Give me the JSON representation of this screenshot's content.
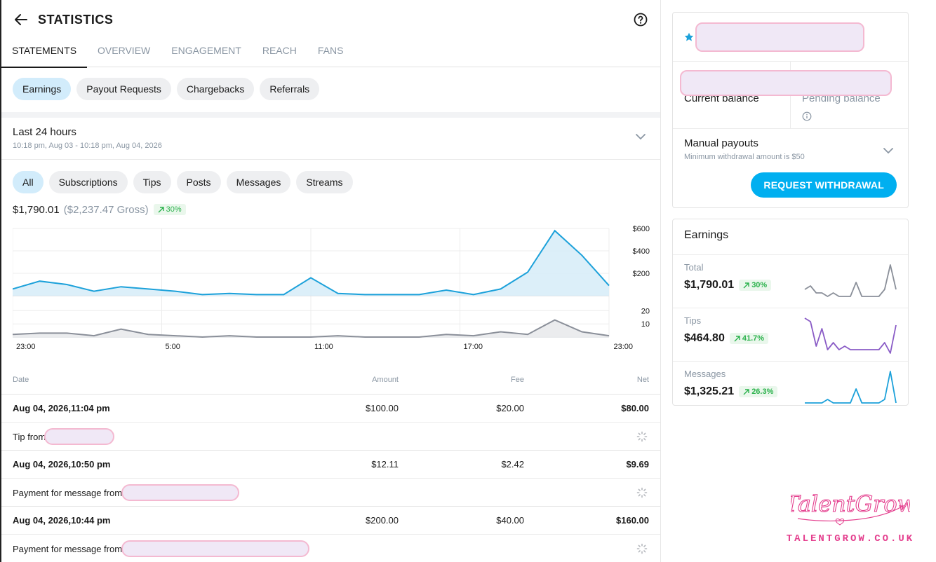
{
  "header": {
    "title": "STATISTICS"
  },
  "tabs": [
    {
      "label": "STATEMENTS",
      "active": true
    },
    {
      "label": "OVERVIEW"
    },
    {
      "label": "ENGAGEMENT"
    },
    {
      "label": "REACH"
    },
    {
      "label": "FANS"
    }
  ],
  "statement_types": [
    {
      "label": "Earnings",
      "active": true
    },
    {
      "label": "Payout Requests"
    },
    {
      "label": "Chargebacks"
    },
    {
      "label": "Referrals"
    }
  ],
  "period": {
    "title": "Last 24 hours",
    "range": "10:18 pm, Aug 03 - 10:18 pm, Aug 04, 2026"
  },
  "filters": [
    {
      "label": "All",
      "active": true
    },
    {
      "label": "Subscriptions"
    },
    {
      "label": "Tips"
    },
    {
      "label": "Posts"
    },
    {
      "label": "Messages"
    },
    {
      "label": "Streams"
    }
  ],
  "summary": {
    "net": "$1,790.01",
    "gross": "($2,237.47 Gross)",
    "change": "30%"
  },
  "chart_data": [
    {
      "type": "area",
      "series": [
        {
          "values": [
            60,
            130,
            100,
            40,
            80,
            60,
            40,
            10,
            20,
            10,
            10,
            160,
            20,
            10,
            10,
            10,
            50,
            10,
            60,
            210,
            580,
            360,
            90
          ]
        }
      ],
      "y_ticks": [
        "$600",
        "$400",
        "$200"
      ],
      "ylim": [
        0,
        600
      ],
      "color": "#1ca1da"
    },
    {
      "type": "area",
      "series": [
        {
          "values": [
            2,
            3,
            3,
            1,
            6,
            2,
            1,
            0,
            1,
            0,
            0,
            0,
            1,
            0,
            0,
            0,
            2,
            1,
            4,
            2,
            13,
            4,
            1
          ]
        }
      ],
      "y_ticks": [
        "20",
        "10"
      ],
      "ylim": [
        0,
        25
      ],
      "color": "#8a8f99"
    }
  ],
  "x_ticks": [
    "23:00",
    "5:00",
    "11:00",
    "17:00",
    "23:00"
  ],
  "table": {
    "headers": {
      "date": "Date",
      "amount": "Amount",
      "fee": "Fee",
      "net": "Net"
    },
    "rows": [
      {
        "date": "Aug 04, 2026,11:04 pm",
        "amount": "$100.00",
        "fee": "$20.00",
        "net": "$80.00",
        "description": "Tip from"
      },
      {
        "date": "Aug 04, 2026,10:50 pm",
        "amount": "$12.11",
        "fee": "$2.42",
        "net": "$9.69",
        "description": "Payment for message from"
      },
      {
        "date": "Aug 04, 2026,10:44 pm",
        "amount": "$200.00",
        "fee": "$40.00",
        "net": "$160.00",
        "description": "Payment for message from"
      }
    ]
  },
  "balance": {
    "current_label": "Current balance",
    "pending_label": "Pending balance",
    "payout_title": "Manual payouts",
    "payout_sub": "Minimum withdrawal amount is $50",
    "button": "REQUEST WITHDRAWAL"
  },
  "earnings": {
    "title": "Earnings",
    "items": [
      {
        "label": "Total",
        "value": "$1,790.01",
        "change": "30%",
        "color": "#8a8f99",
        "values": [
          3,
          4,
          2,
          2,
          1,
          2,
          1,
          1,
          1,
          5,
          1,
          1,
          1,
          1,
          3,
          10,
          3
        ]
      },
      {
        "label": "Tips",
        "value": "$464.80",
        "change": "41.7%",
        "color": "#8a5cc6",
        "values": [
          10,
          9,
          2,
          7,
          1,
          3,
          1,
          2,
          1,
          1,
          1,
          1,
          1,
          1,
          3,
          0,
          8
        ]
      },
      {
        "label": "Messages",
        "value": "$1,325.21",
        "change": "26.3%",
        "color": "#1ca1da",
        "values": [
          1,
          1,
          1,
          1,
          2,
          1,
          1,
          1,
          1,
          5,
          1,
          1,
          1,
          1,
          2,
          10,
          1
        ]
      }
    ]
  },
  "branding": {
    "logo_text": "TALENTGROW.CO.UK",
    "logo_script": "TalentGrow"
  }
}
